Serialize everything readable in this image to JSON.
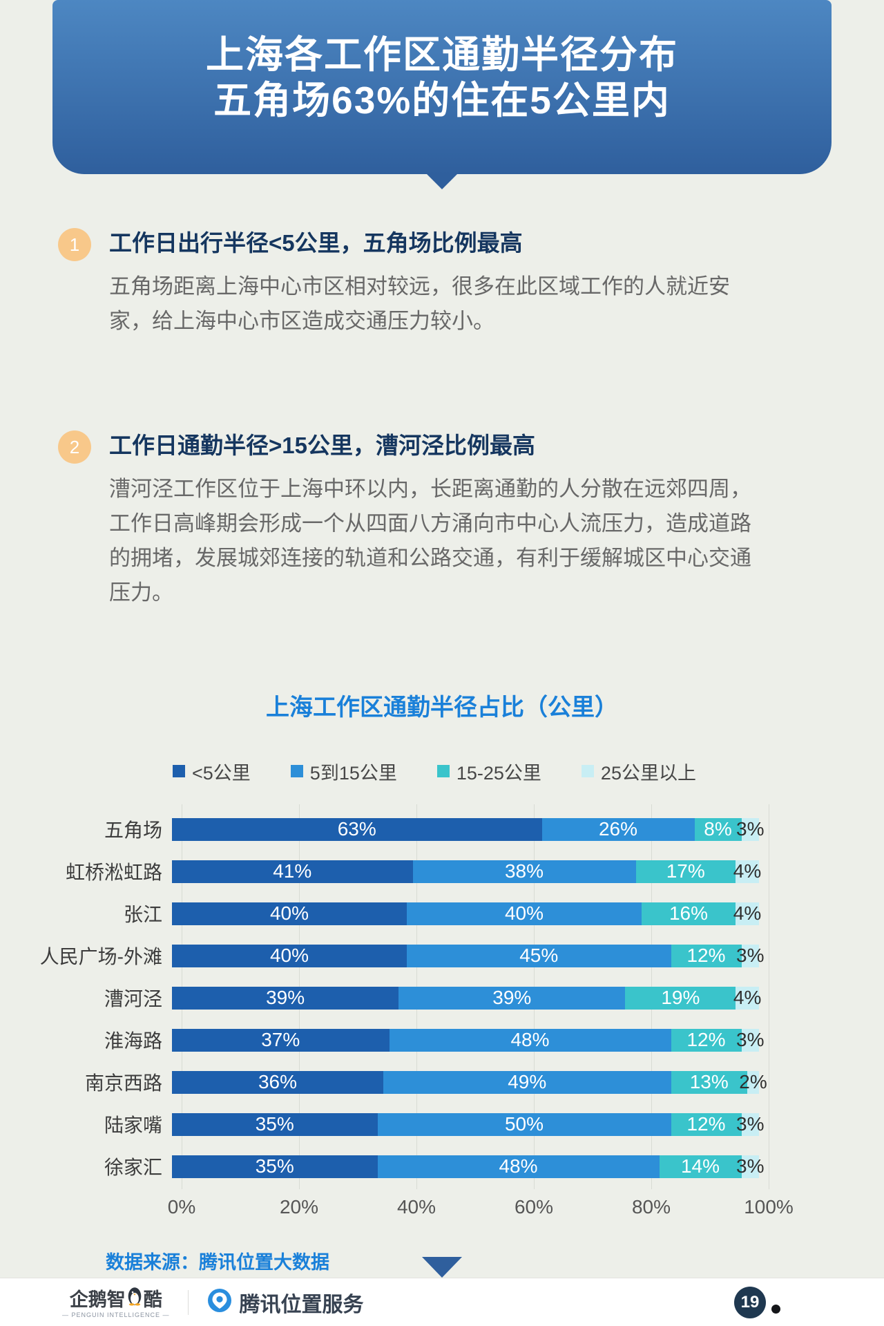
{
  "header": {
    "title_line1": "上海各工作区通勤半径分布",
    "title_line2": "五角场63%的住在5公里内",
    "bg_gradient_top": "#4d87c2",
    "bg_gradient_bottom": "#2f5f9d"
  },
  "points": [
    {
      "number": "1",
      "heading": "工作日出行半径<5公里，五角场比例最高",
      "body": "五角场距离上海中心市区相对较远，很多在此区域工作的人就近安家，给上海中心市区造成交通压力较小。"
    },
    {
      "number": "2",
      "heading": "工作日通勤半径>15公里，漕河泾比例最高",
      "body": "漕河泾工作区位于上海中环以内，长距离通勤的人分散在远郊四周，工作日高峰期会形成一个从四面八方涌向市中心人流压力，造成道路的拥堵，发展城郊连接的轨道和公路交通，有利于缓解城区中心交通压力。"
    }
  ],
  "chart_data": {
    "type": "bar",
    "orientation": "horizontal",
    "stacked": true,
    "title": "上海工作区通勤半径占比（公里）",
    "source_note": "数据来源：腾讯位置大数据",
    "categories": [
      "五角场",
      "虹桥淞虹路",
      "张江",
      "人民广场-外滩",
      "漕河泾",
      "淮海路",
      "南京西路",
      "陆家嘴",
      "徐家汇"
    ],
    "series": [
      {
        "name": "<5公里",
        "color": "#1d5fad",
        "values": [
          63,
          41,
          40,
          40,
          39,
          37,
          36,
          35,
          35
        ]
      },
      {
        "name": "5到15公里",
        "color": "#2d8fd8",
        "values": [
          26,
          38,
          40,
          45,
          39,
          48,
          49,
          50,
          48
        ]
      },
      {
        "name": "15-25公里",
        "color": "#3ac4cb",
        "values": [
          8,
          17,
          16,
          12,
          19,
          12,
          13,
          12,
          14
        ]
      },
      {
        "name": "25公里以上",
        "color": "#c8eef4",
        "values": [
          3,
          4,
          4,
          3,
          4,
          3,
          2,
          3,
          3
        ]
      }
    ],
    "x_ticks": [
      "0%",
      "20%",
      "40%",
      "60%",
      "80%",
      "100%"
    ],
    "xlim": [
      0,
      100
    ],
    "grid": true,
    "legend_position": "top",
    "value_suffix": "%"
  },
  "footer": {
    "logo_penguin_text_left": "企鹅智",
    "logo_penguin_text_right": "酷",
    "logo_penguin_subtitle": "— PENGUIN INTELLIGENCE —",
    "logo_penguin_icon": "penguin-icon",
    "logo_tencent_text": "腾讯位置服务",
    "logo_tencent_icon": "location-pin-icon",
    "page_number": "19"
  },
  "colors": {
    "page_background": "#edefe9",
    "accent_blue": "#1a80d9",
    "heading_navy": "#15365f",
    "body_gray": "#686868",
    "badge_orange": "#f8c88a",
    "footer_badge_navy": "#1f3850",
    "gridline": "#d8dbd4"
  }
}
